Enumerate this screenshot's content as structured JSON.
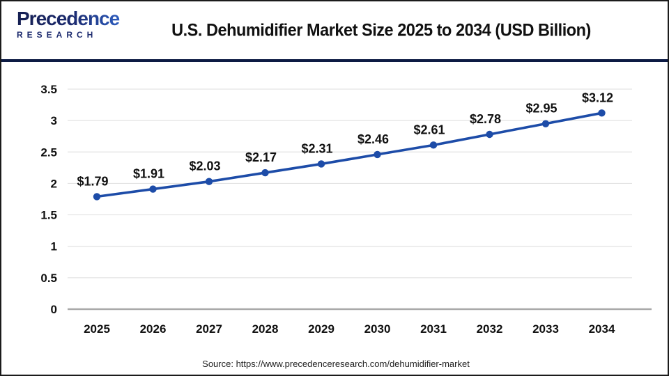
{
  "page": {
    "logo": {
      "word": "Precedence",
      "sub": "RESEARCH"
    },
    "title": "U.S. Dehumidifier Market Size 2025 to 2034 (USD Billion)",
    "source": "Source: https://www.precedenceresearch.com/dehumidifier-market"
  },
  "colors": {
    "line": "#1d4ca8",
    "divider": "#0d1b44",
    "grid": "#e3e3e3",
    "axis": "#a9a9a9",
    "text": "#111111"
  },
  "chart_data": {
    "type": "line",
    "title": "U.S. Dehumidifier Market Size 2025 to 2034 (USD Billion)",
    "unit": "USD Billion",
    "categories": [
      "2025",
      "2026",
      "2027",
      "2028",
      "2029",
      "2030",
      "2031",
      "2032",
      "2033",
      "2034"
    ],
    "values": [
      1.79,
      1.91,
      2.03,
      2.17,
      2.31,
      2.46,
      2.61,
      2.78,
      2.95,
      3.12
    ],
    "value_labels": [
      "$1.79",
      "$1.91",
      "$2.03",
      "$2.17",
      "$2.31",
      "$2.46",
      "$2.61",
      "$2.78",
      "$2.95",
      "$3.12"
    ],
    "xlabel": "",
    "ylabel": "",
    "ylim": [
      0,
      3.5
    ],
    "yticks": [
      "0",
      "0.5",
      "1",
      "1.5",
      "2",
      "2.5",
      "3",
      "3.5"
    ],
    "grid": true,
    "legend": "none",
    "marker": "circle",
    "source": "Source: https://www.precedenceresearch.com/dehumidifier-market"
  }
}
